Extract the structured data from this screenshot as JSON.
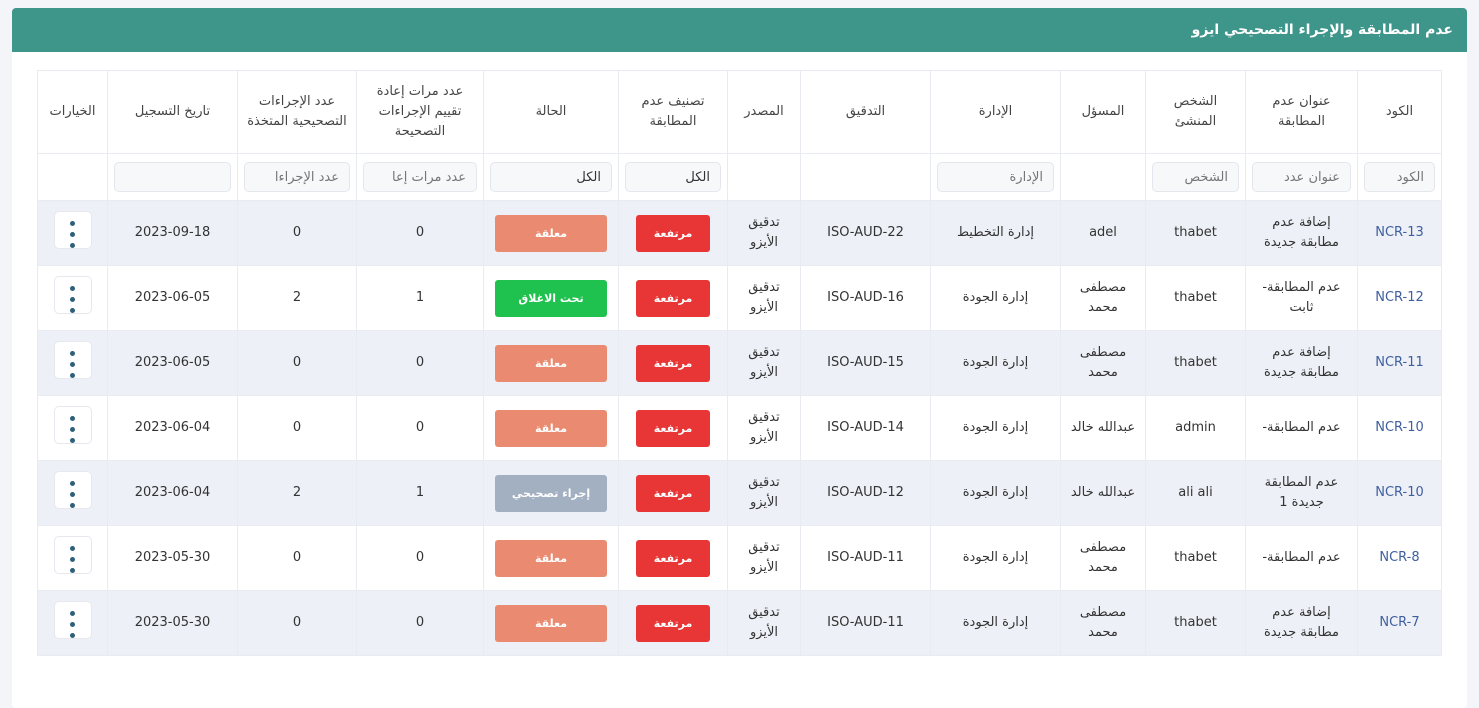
{
  "title": "عدم المطابقة والإجراء التصحيحي ايزو",
  "columns": [
    "الكود",
    "عنوان عدم المطابقة",
    "الشخص المنشئ",
    "المسؤل",
    "الإدارة",
    "التدقيق",
    "المصدر",
    "تصنيف عدم المطابقة",
    "الحالة",
    "عدد مرات إعادة تقييم الإجراءات التصحيحة",
    "عدد الإجراءات التصحيحية المتخذة",
    "تاريخ التسجيل",
    "الخيارات"
  ],
  "filters": {
    "code": "الكود",
    "title": "عنوان عدد",
    "person": "الشخص",
    "dept": "الإدارة",
    "class": "الكل",
    "status": "الكل",
    "reeval": "عدد مرات إعا",
    "actions": "عدد الإجراءا",
    "date": ""
  },
  "status_colors": {
    "معلقة": "#ea8a70",
    "تحت الاغلاق": "#1fc24f",
    "إجراء تصحيحي": "#a3b0c2"
  },
  "rows": [
    {
      "code": "NCR-13",
      "title": "إضافة عدم مطابقة جديدة",
      "person": "thabet",
      "resp": "adel",
      "dept": "إدارة التخطيط",
      "audit": "ISO-AUD-22",
      "source": "تدقيق الأيزو",
      "class": "مرتفعة",
      "status": "معلقة",
      "reeval": "0",
      "actions": "0",
      "date": "2023-09-18"
    },
    {
      "code": "NCR-12",
      "title": "عدم المطابقة- ثابت",
      "person": "thabet",
      "resp": "مصطفى محمد",
      "dept": "إدارة الجودة",
      "audit": "ISO-AUD-16",
      "source": "تدقيق الأيزو",
      "class": "مرتفعة",
      "status": "تحت الاغلاق",
      "reeval": "1",
      "actions": "2",
      "date": "2023-06-05"
    },
    {
      "code": "NCR-11",
      "title": "إضافة عدم مطابقة جديدة",
      "person": "thabet",
      "resp": "مصطفى محمد",
      "dept": "إدارة الجودة",
      "audit": "ISO-AUD-15",
      "source": "تدقيق الأيزو",
      "class": "مرتفعة",
      "status": "معلقة",
      "reeval": "0",
      "actions": "0",
      "date": "2023-06-05"
    },
    {
      "code": "NCR-10",
      "title": "عدم المطابقة-",
      "person": "admin",
      "resp": "عبدالله خالد",
      "dept": "إدارة الجودة",
      "audit": "ISO-AUD-14",
      "source": "تدقيق الأيزو",
      "class": "مرتفعة",
      "status": "معلقة",
      "reeval": "0",
      "actions": "0",
      "date": "2023-06-04"
    },
    {
      "code": "NCR-10",
      "title": "عدم المطابقة جديدة 1",
      "person": "ali ali",
      "resp": "عبدالله خالد",
      "dept": "إدارة الجودة",
      "audit": "ISO-AUD-12",
      "source": "تدقيق الأيزو",
      "class": "مرتفعة",
      "status": "إجراء تصحيحي",
      "reeval": "1",
      "actions": "2",
      "date": "2023-06-04"
    },
    {
      "code": "NCR-8",
      "title": "عدم المطابقة-",
      "person": "thabet",
      "resp": "مصطفى محمد",
      "dept": "إدارة الجودة",
      "audit": "ISO-AUD-11",
      "source": "تدقيق الأيزو",
      "class": "مرتفعة",
      "status": "معلقة",
      "reeval": "0",
      "actions": "0",
      "date": "2023-05-30"
    },
    {
      "code": "NCR-7",
      "title": "إضافة عدم مطابقة جديدة",
      "person": "thabet",
      "resp": "مصطفى محمد",
      "dept": "إدارة الجودة",
      "audit": "ISO-AUD-11",
      "source": "تدقيق الأيزو",
      "class": "مرتفعة",
      "status": "معلقة",
      "reeval": "0",
      "actions": "0",
      "date": "2023-05-30"
    }
  ]
}
